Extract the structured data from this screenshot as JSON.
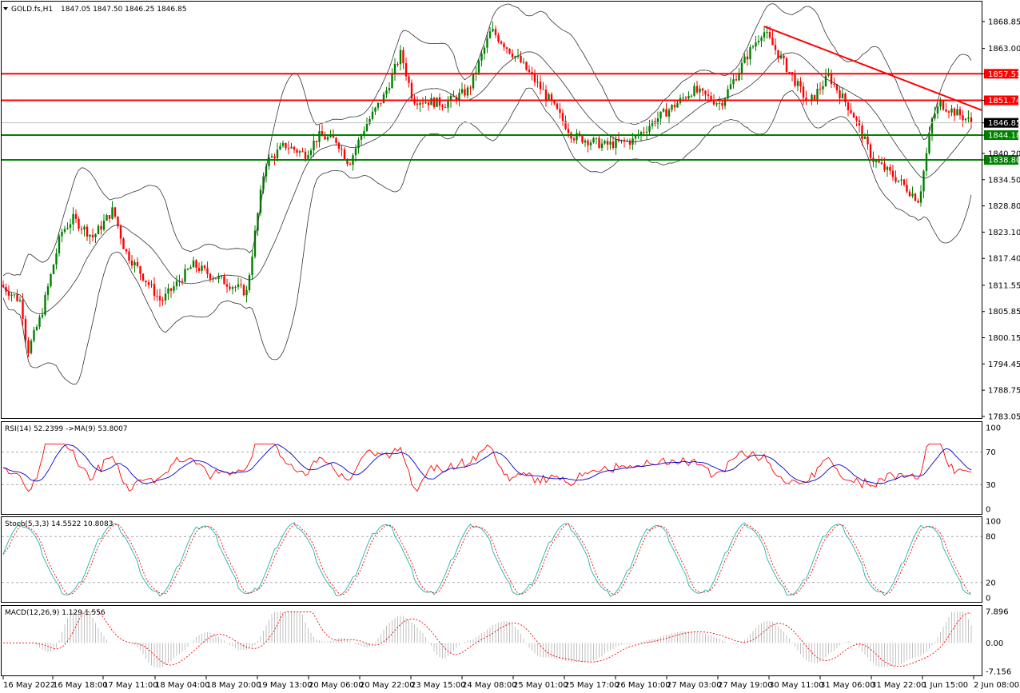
{
  "header": {
    "symbol": "GOLD.fs,H1",
    "ohlc": "1847.05 1847.50 1846.25 1846.85"
  },
  "chart_data": [
    {
      "type": "candlestick",
      "title": "GOLD.fs,H1",
      "y_ticks": [
        "1868.85",
        "1863.00",
        "1857.51",
        "1851.74",
        "1846.85",
        "1844.18",
        "1840.20",
        "1838.80",
        "1834.50",
        "1828.80",
        "1823.10",
        "1817.40",
        "1811.55",
        "1805.85",
        "1800.15",
        "1794.45",
        "1788.75",
        "1783.05"
      ],
      "ylim": [
        1783.05,
        1871.5
      ],
      "price_levels": [
        {
          "value": 1857.51,
          "label": "1857.51",
          "color": "#ff0000"
        },
        {
          "value": 1851.74,
          "label": "1851.74",
          "color": "#ff0000"
        },
        {
          "value": 1844.18,
          "label": "1844.18",
          "color": "#008000"
        },
        {
          "value": 1838.8,
          "label": "1838.80",
          "color": "#008000"
        }
      ],
      "current_price": {
        "value": 1846.85,
        "label": "1846.85"
      },
      "trendline": {
        "from": [
          "27 May 19:00",
          1867.8
        ],
        "to": [
          "2 Jun 08:00",
          1849.6
        ],
        "color": "#ff0000"
      },
      "bull_color": "#008000",
      "bear_color": "#ff0000",
      "indicators": [
        "Bollinger Bands (20)"
      ]
    },
    {
      "type": "line",
      "title": "RSI(14) 52.2399 ->MA(9) 53.8007",
      "ylim": [
        0,
        100
      ],
      "levels": [
        30,
        70
      ],
      "y_ticks": [
        "100",
        "70",
        "30",
        "0"
      ],
      "series": [
        {
          "name": "RSI(14)",
          "color": "#ff0000"
        },
        {
          "name": "MA(9)",
          "color": "#0000cd"
        }
      ]
    },
    {
      "type": "line",
      "title": "Stoch(5,3,3) 14.5522 10.8083",
      "ylim": [
        0,
        100
      ],
      "levels": [
        20,
        80
      ],
      "y_ticks": [
        "100",
        "80",
        "20",
        "0"
      ],
      "series": [
        {
          "name": "Stoch %K",
          "color": "#20b2aa"
        },
        {
          "name": "Stoch %D",
          "color": "#ff0000"
        }
      ]
    },
    {
      "type": "bar",
      "title": "MACD(12,26,9) 1.129 1.556",
      "ylim": [
        -7.156,
        7.896
      ],
      "y_ticks": [
        "7.896",
        "0.00",
        "-7.156"
      ],
      "series": [
        {
          "name": "MACD",
          "color": "#c0c0c0"
        },
        {
          "name": "Signal",
          "color": "#ff0000"
        }
      ]
    }
  ],
  "x_axis_labels": [
    "16 May 2022",
    "16 May 18:00",
    "17 May 11:00",
    "18 May 04:00",
    "18 May 20:00",
    "19 May 13:00",
    "20 May 06:00",
    "20 May 22:00",
    "23 May 15:00",
    "24 May 08:00",
    "25 May 01:00",
    "25 May 17:00",
    "26 May 10:00",
    "27 May 03:00",
    "27 May 19:00",
    "30 May 11:00",
    "31 May 06:00",
    "31 May 22:00",
    "1 Jun 15:00",
    "2 Jun 08:00"
  ]
}
